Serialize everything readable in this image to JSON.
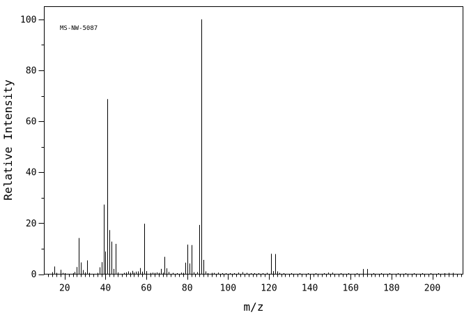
{
  "chart_data": {
    "type": "bar",
    "annotation": "MS-NW-5087",
    "xlabel": "m/z",
    "ylabel": "Relative Intensity",
    "xlim": [
      10,
      215
    ],
    "ylim": [
      0,
      105
    ],
    "x_ticks": [
      20,
      40,
      60,
      80,
      100,
      120,
      140,
      160,
      180,
      200
    ],
    "y_ticks": [
      0,
      20,
      40,
      60,
      80,
      100
    ],
    "grid": false,
    "peaks": [
      {
        "mz": 14,
        "intensity": 0.8
      },
      {
        "mz": 15,
        "intensity": 3.0
      },
      {
        "mz": 16,
        "intensity": 0.5
      },
      {
        "mz": 18,
        "intensity": 1.7
      },
      {
        "mz": 19,
        "intensity": 0.5
      },
      {
        "mz": 20,
        "intensity": 0.4
      },
      {
        "mz": 24,
        "intensity": 0.4
      },
      {
        "mz": 25,
        "intensity": 0.9
      },
      {
        "mz": 26,
        "intensity": 2.8
      },
      {
        "mz": 27,
        "intensity": 14.2
      },
      {
        "mz": 28,
        "intensity": 4.6
      },
      {
        "mz": 29,
        "intensity": 1.6
      },
      {
        "mz": 30,
        "intensity": 0.7
      },
      {
        "mz": 31,
        "intensity": 5.4
      },
      {
        "mz": 32,
        "intensity": 0.5
      },
      {
        "mz": 36,
        "intensity": 0.5
      },
      {
        "mz": 37,
        "intensity": 2.7
      },
      {
        "mz": 38,
        "intensity": 4.7
      },
      {
        "mz": 39,
        "intensity": 27.3
      },
      {
        "mz": 40,
        "intensity": 8.9
      },
      {
        "mz": 41,
        "intensity": 68.7
      },
      {
        "mz": 42,
        "intensity": 17.3
      },
      {
        "mz": 43,
        "intensity": 12.8
      },
      {
        "mz": 44,
        "intensity": 2.1
      },
      {
        "mz": 45,
        "intensity": 11.9
      },
      {
        "mz": 46,
        "intensity": 0.7
      },
      {
        "mz": 49,
        "intensity": 0.5
      },
      {
        "mz": 50,
        "intensity": 0.7
      },
      {
        "mz": 51,
        "intensity": 1.1
      },
      {
        "mz": 52,
        "intensity": 0.6
      },
      {
        "mz": 53,
        "intensity": 1.3
      },
      {
        "mz": 54,
        "intensity": 0.6
      },
      {
        "mz": 55,
        "intensity": 1.0
      },
      {
        "mz": 56,
        "intensity": 1.1
      },
      {
        "mz": 57,
        "intensity": 2.4
      },
      {
        "mz": 58,
        "intensity": 1.0
      },
      {
        "mz": 59,
        "intensity": 19.8
      },
      {
        "mz": 60,
        "intensity": 1.2
      },
      {
        "mz": 62,
        "intensity": 0.5
      },
      {
        "mz": 63,
        "intensity": 0.6
      },
      {
        "mz": 64,
        "intensity": 0.5
      },
      {
        "mz": 65,
        "intensity": 0.7
      },
      {
        "mz": 66,
        "intensity": 0.5
      },
      {
        "mz": 67,
        "intensity": 2.1
      },
      {
        "mz": 68,
        "intensity": 0.6
      },
      {
        "mz": 69,
        "intensity": 6.8
      },
      {
        "mz": 70,
        "intensity": 2.3
      },
      {
        "mz": 71,
        "intensity": 0.9
      },
      {
        "mz": 73,
        "intensity": 0.5
      },
      {
        "mz": 75,
        "intensity": 0.4
      },
      {
        "mz": 77,
        "intensity": 0.6
      },
      {
        "mz": 78,
        "intensity": 0.5
      },
      {
        "mz": 79,
        "intensity": 4.5
      },
      {
        "mz": 80,
        "intensity": 11.6
      },
      {
        "mz": 81,
        "intensity": 4.2
      },
      {
        "mz": 82,
        "intensity": 11.4
      },
      {
        "mz": 83,
        "intensity": 0.8
      },
      {
        "mz": 85,
        "intensity": 0.8
      },
      {
        "mz": 86,
        "intensity": 19.3
      },
      {
        "mz": 87,
        "intensity": 100
      },
      {
        "mz": 88,
        "intensity": 5.6
      },
      {
        "mz": 89,
        "intensity": 1.1
      },
      {
        "mz": 90,
        "intensity": 0.4
      },
      {
        "mz": 92,
        "intensity": 0.5
      },
      {
        "mz": 93,
        "intensity": 0.5
      },
      {
        "mz": 95,
        "intensity": 0.6
      },
      {
        "mz": 97,
        "intensity": 0.4
      },
      {
        "mz": 99,
        "intensity": 0.4
      },
      {
        "mz": 101,
        "intensity": 0.4
      },
      {
        "mz": 103,
        "intensity": 0.4
      },
      {
        "mz": 105,
        "intensity": 0.6
      },
      {
        "mz": 107,
        "intensity": 0.8
      },
      {
        "mz": 109,
        "intensity": 0.5
      },
      {
        "mz": 111,
        "intensity": 0.4
      },
      {
        "mz": 113,
        "intensity": 0.4
      },
      {
        "mz": 115,
        "intensity": 0.4
      },
      {
        "mz": 117,
        "intensity": 0.4
      },
      {
        "mz": 119,
        "intensity": 0.5
      },
      {
        "mz": 121,
        "intensity": 8.0
      },
      {
        "mz": 122,
        "intensity": 1.2
      },
      {
        "mz": 123,
        "intensity": 7.9
      },
      {
        "mz": 124,
        "intensity": 1.1
      },
      {
        "mz": 125,
        "intensity": 0.5
      },
      {
        "mz": 127,
        "intensity": 0.4
      },
      {
        "mz": 131,
        "intensity": 0.4
      },
      {
        "mz": 135,
        "intensity": 0.4
      },
      {
        "mz": 139,
        "intensity": 0.4
      },
      {
        "mz": 143,
        "intensity": 0.4
      },
      {
        "mz": 147,
        "intensity": 0.4
      },
      {
        "mz": 149,
        "intensity": 0.6
      },
      {
        "mz": 151,
        "intensity": 0.6
      },
      {
        "mz": 155,
        "intensity": 0.4
      },
      {
        "mz": 159,
        "intensity": 0.4
      },
      {
        "mz": 163,
        "intensity": 0.4
      },
      {
        "mz": 166,
        "intensity": 2.0
      },
      {
        "mz": 168,
        "intensity": 2.0
      },
      {
        "mz": 171,
        "intensity": 0.4
      },
      {
        "mz": 175,
        "intensity": 0.4
      },
      {
        "mz": 179,
        "intensity": 0.4
      },
      {
        "mz": 183,
        "intensity": 0.4
      },
      {
        "mz": 187,
        "intensity": 0.4
      },
      {
        "mz": 191,
        "intensity": 0.4
      },
      {
        "mz": 195,
        "intensity": 0.4
      },
      {
        "mz": 199,
        "intensity": 0.4
      },
      {
        "mz": 203,
        "intensity": 0.4
      },
      {
        "mz": 206,
        "intensity": 0.4
      },
      {
        "mz": 208,
        "intensity": 0.5
      },
      {
        "mz": 210,
        "intensity": 0.5
      }
    ]
  }
}
